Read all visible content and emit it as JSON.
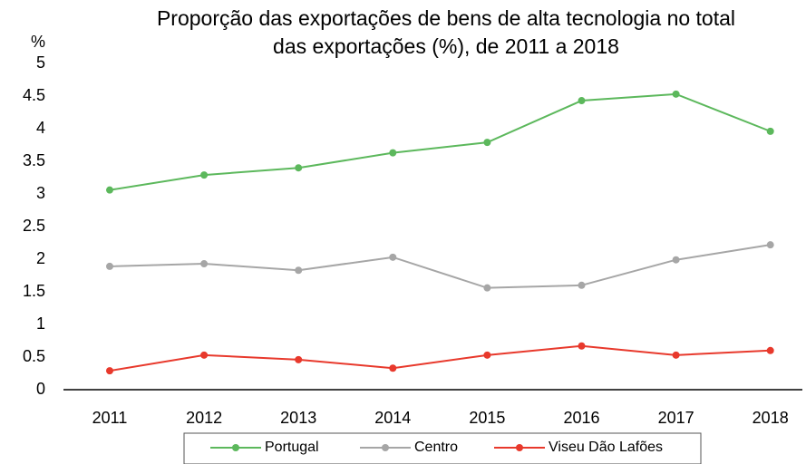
{
  "chart_data": {
    "type": "line",
    "title": [
      "Proporção das exportações de bens de alta tecnologia no total",
      "das exportações (%), de 2011 a 2018"
    ],
    "y_label": "%",
    "categories": [
      "2011",
      "2012",
      "2013",
      "2014",
      "2015",
      "2016",
      "2017",
      "2018"
    ],
    "series": [
      {
        "name": "Portugal",
        "color": "#5cb85c",
        "values": [
          3.06,
          3.29,
          3.4,
          3.63,
          3.79,
          4.43,
          4.53,
          3.96
        ]
      },
      {
        "name": "Centro",
        "color": "#a6a6a6",
        "values": [
          1.89,
          1.93,
          1.83,
          2.03,
          1.56,
          1.6,
          1.99,
          2.22
        ]
      },
      {
        "name": "Viseu Dão Lafões",
        "color": "#e8392c",
        "values": [
          0.29,
          0.53,
          0.46,
          0.33,
          0.53,
          0.67,
          0.53,
          0.6
        ]
      }
    ],
    "ylim": [
      0,
      5
    ],
    "yticks": [
      0,
      0.5,
      1,
      1.5,
      2,
      2.5,
      3,
      3.5,
      4,
      4.5,
      5
    ],
    "grid": false,
    "legend": "bottom"
  }
}
